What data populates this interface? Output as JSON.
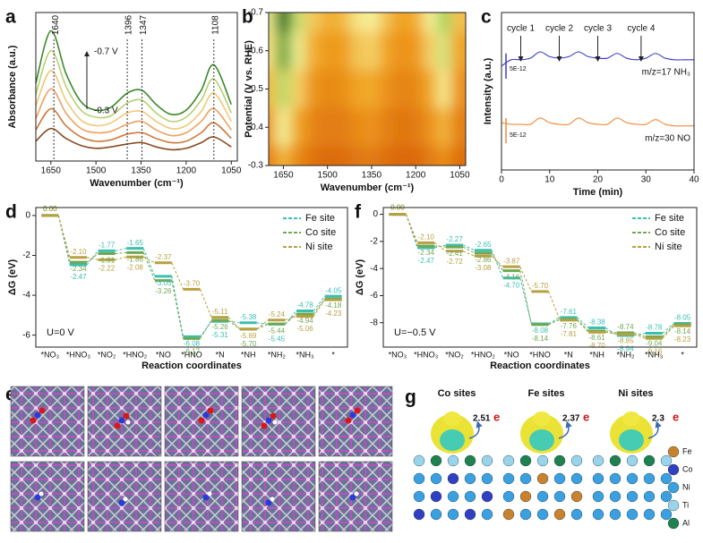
{
  "panel_labels": [
    "a",
    "b",
    "c",
    "d",
    "e",
    "f",
    "g"
  ],
  "chart_data": [
    {
      "type": "line",
      "xlabel": "Wavenumber (cm⁻¹)",
      "ylabel": "Absorbance (a.u.)",
      "x": [
        1700,
        1650,
        1600,
        1550,
        1500,
        1450,
        1396,
        1347,
        1300,
        1250,
        1200,
        1150,
        1108,
        1050
      ],
      "xlim": [
        1700,
        1030
      ],
      "xticks": [
        1650,
        1500,
        1350,
        1200,
        1050
      ],
      "ylim": [
        0,
        1.05
      ],
      "series": [
        {
          "color": "#8a4a1e",
          "values": [
            0.14,
            0.23,
            0.16,
            0.11,
            0.09,
            0.1,
            0.12,
            0.13,
            0.1,
            0.08,
            0.09,
            0.13,
            0.17,
            0.1
          ]
        },
        {
          "color": "#d0783a",
          "values": [
            0.22,
            0.37,
            0.25,
            0.17,
            0.14,
            0.15,
            0.19,
            0.2,
            0.16,
            0.13,
            0.14,
            0.2,
            0.27,
            0.16
          ]
        },
        {
          "color": "#f0a060",
          "values": [
            0.3,
            0.51,
            0.34,
            0.23,
            0.2,
            0.21,
            0.26,
            0.28,
            0.22,
            0.18,
            0.2,
            0.28,
            0.37,
            0.22
          ]
        },
        {
          "color": "#f0c878",
          "values": [
            0.39,
            0.64,
            0.43,
            0.29,
            0.25,
            0.27,
            0.34,
            0.35,
            0.28,
            0.23,
            0.25,
            0.35,
            0.48,
            0.28
          ]
        },
        {
          "color": "#b8d070",
          "values": [
            0.47,
            0.78,
            0.53,
            0.36,
            0.31,
            0.32,
            0.41,
            0.43,
            0.34,
            0.28,
            0.31,
            0.43,
            0.58,
            0.34
          ]
        },
        {
          "color": "#3a8a2a",
          "values": [
            0.55,
            0.92,
            0.62,
            0.42,
            0.36,
            0.38,
            0.48,
            0.5,
            0.4,
            0.33,
            0.36,
            0.5,
            0.68,
            0.4
          ]
        }
      ],
      "annotations": [
        {
          "text": "1640",
          "x": 1640
        },
        {
          "text": "1396",
          "x": 1396
        },
        {
          "text": "1347",
          "x": 1347
        },
        {
          "text": "1108",
          "x": 1108
        }
      ],
      "potential_labels": [
        "-0.7 V",
        "-0.3 V"
      ]
    },
    {
      "type": "heatmap",
      "xlabel": "Wavenumber (cm⁻¹)",
      "ylabel": "Potential (V vs. RHE)",
      "x": [
        1700,
        1650,
        1600,
        1550,
        1500,
        1450,
        1396,
        1347,
        1300,
        1250,
        1200,
        1150,
        1108,
        1050
      ],
      "y": [
        -0.7,
        -0.6,
        -0.5,
        -0.4,
        -0.3
      ],
      "values": [
        [
          0.55,
          0.92,
          0.62,
          0.42,
          0.36,
          0.38,
          0.48,
          0.5,
          0.4,
          0.33,
          0.36,
          0.5,
          0.68,
          0.4
        ],
        [
          0.47,
          0.78,
          0.53,
          0.36,
          0.31,
          0.32,
          0.41,
          0.43,
          0.34,
          0.28,
          0.31,
          0.43,
          0.58,
          0.34
        ],
        [
          0.39,
          0.64,
          0.43,
          0.29,
          0.25,
          0.27,
          0.34,
          0.35,
          0.28,
          0.23,
          0.25,
          0.35,
          0.48,
          0.28
        ],
        [
          0.3,
          0.51,
          0.34,
          0.23,
          0.2,
          0.21,
          0.26,
          0.28,
          0.22,
          0.18,
          0.2,
          0.28,
          0.37,
          0.22
        ],
        [
          0.22,
          0.37,
          0.25,
          0.17,
          0.14,
          0.15,
          0.19,
          0.2,
          0.16,
          0.13,
          0.14,
          0.2,
          0.27,
          0.16
        ]
      ],
      "xlim": [
        1700,
        1030
      ],
      "xticks": [
        1650,
        1500,
        1350,
        1200,
        1050
      ],
      "ylim": [
        -0.3,
        -0.7
      ],
      "yticks": [
        -0.7,
        -0.6,
        -0.5,
        -0.4,
        -0.3
      ]
    },
    {
      "type": "line",
      "xlabel": "Time (min)",
      "ylabel": "Intensity (a.u.)",
      "x": [
        0,
        2,
        4,
        6,
        8,
        10,
        12,
        14,
        16,
        18,
        20,
        22,
        24,
        26,
        28,
        30,
        32,
        34,
        36,
        38,
        40
      ],
      "xlim": [
        0,
        40
      ],
      "xticks": [
        0,
        10,
        20,
        30,
        40
      ],
      "ylim": [
        0,
        1
      ],
      "series": [
        {
          "name": "m/z=17 NH₃",
          "color": "#3a3ad0",
          "values": [
            0.66,
            0.7,
            0.7,
            0.71,
            0.75,
            0.72,
            0.71,
            0.72,
            0.75,
            0.72,
            0.71,
            0.71,
            0.74,
            0.71,
            0.7,
            0.71,
            0.74,
            0.71,
            0.7,
            0.7,
            0.7
          ]
        },
        {
          "name": "m/z=30 NO",
          "color": "#f08a3a",
          "values": [
            0.3,
            0.29,
            0.29,
            0.29,
            0.33,
            0.3,
            0.29,
            0.29,
            0.33,
            0.3,
            0.29,
            0.29,
            0.33,
            0.3,
            0.29,
            0.29,
            0.32,
            0.29,
            0.28,
            0.28,
            0.28
          ]
        }
      ],
      "annotations": [
        {
          "text": "cycle 1",
          "x": 4
        },
        {
          "text": "cycle 2",
          "x": 12
        },
        {
          "text": "cycle 3",
          "x": 20
        },
        {
          "text": "cycle 4",
          "x": 29
        }
      ],
      "scale_bar_labels": [
        "5E-12",
        "5E-12"
      ]
    },
    {
      "type": "step",
      "xlabel": "Reaction coordinates",
      "ylabel": "ΔG (eV)",
      "categories": [
        "*NO₃",
        "*HNO₃",
        "*NO₂",
        "*HNO₂",
        "*NO",
        "*HNO",
        "*N",
        "*NH",
        "*NH₂",
        "*NH₃",
        "*"
      ],
      "ylim": [
        -6.6,
        0.4
      ],
      "yticks": [
        0,
        -2,
        -4,
        -6
      ],
      "legend": "upper right",
      "annotation": "U=0 V",
      "series": [
        {
          "name": "Fe site",
          "color": "#3bbfb0",
          "values": [
            0,
            -2.47,
            -1.77,
            -1.65,
            -3.05,
            -6.08,
            -5.31,
            -5.38,
            -5.45,
            -4.78,
            -4.05
          ],
          "value_labels": [
            "0.00",
            "-2.47",
            "-1.77",
            "-1.65",
            "-3.05",
            "-6.08",
            "-5.31",
            "-5.38",
            "-5.45",
            "-4.78",
            "-4.05"
          ]
        },
        {
          "name": "Co site",
          "color": "#6fa850",
          "values": [
            0,
            -2.34,
            -1.91,
            -1.86,
            -3.26,
            -6.17,
            -5.26,
            -5.7,
            -5.44,
            -4.94,
            -4.18
          ],
          "value_labels": [
            "0.00",
            "-2.34",
            "-1.91",
            "-1.86",
            "-3.26",
            "-6.17",
            "-5.26",
            "-5.70",
            "-5.44",
            "-4.94",
            "-4.18"
          ]
        },
        {
          "name": "Ni site",
          "color": "#b8a040",
          "values": [
            0,
            -2.1,
            -2.22,
            -2.08,
            -2.37,
            -3.7,
            -5.11,
            -5.69,
            -5.24,
            -5.06,
            -4.23
          ],
          "value_labels": [
            "0.00",
            "-2.10",
            "-2.22",
            "-2.08",
            "-2.37",
            "-3.70",
            "-5.11",
            "-5.69",
            "-5.24",
            "-5.06",
            "-4.23"
          ]
        }
      ]
    },
    {
      "type": "step",
      "xlabel": "Reaction coordinates",
      "ylabel": "ΔG (eV)",
      "categories": [
        "*NO₃",
        "*HNO₃",
        "*NO₂",
        "*HNO₂",
        "*NO",
        "*HNO",
        "*N",
        "*NH",
        "*NH₂",
        "*NH₃",
        "*"
      ],
      "ylim": [
        -9.8,
        0.5
      ],
      "yticks": [
        0,
        -2,
        -4,
        -6,
        -8
      ],
      "legend": "upper right",
      "annotation": "U=−0.5 V",
      "series": [
        {
          "name": "Fe site",
          "color": "#3bbfb0",
          "values": [
            0,
            -2.47,
            -2.27,
            -2.65,
            -4.7,
            -8.08,
            -7.61,
            -8.38,
            -8.94,
            -8.78,
            -8.05
          ],
          "value_labels": [
            "0.00",
            "-2.47",
            "-2.27",
            "-2.65",
            "-4.70",
            "-8.08",
            "-7.61",
            "-8.38",
            "-8.94",
            "-8.78",
            "-8.05"
          ]
        },
        {
          "name": "Co site",
          "color": "#6fa850",
          "values": [
            0,
            -2.34,
            -2.41,
            -2.86,
            -4.16,
            -8.14,
            -7.76,
            -8.61,
            -8.74,
            -9.04,
            -8.14
          ],
          "value_labels": [
            "0.00",
            "-2.34",
            "-2.41",
            "-2.86",
            "-4.16",
            "-8.14",
            "-7.76",
            "-8.61",
            "-8.74",
            "-9.04",
            "-8.14"
          ]
        },
        {
          "name": "Ni site",
          "color": "#b8a040",
          "values": [
            0,
            -2.1,
            -2.72,
            -3.08,
            -3.87,
            -5.7,
            -7.81,
            -8.7,
            -8.85,
            -9.16,
            -8.23
          ],
          "value_labels": [
            "0.00",
            "-2.10",
            "-2.72",
            "-3.08",
            "-3.87",
            "-5.70",
            "-7.81",
            "-8.70",
            "-8.85",
            "-9.16",
            "-8.23"
          ]
        }
      ]
    }
  ],
  "panel_g": {
    "titles": [
      "Co sites",
      "Fe sites",
      "Ni sites"
    ],
    "charge_transfer": [
      2.51,
      2.37,
      2.3
    ],
    "charge_unit": "e",
    "legend": [
      {
        "name": "Fe",
        "color": "#c8822e"
      },
      {
        "name": "Co",
        "color": "#3040c0"
      },
      {
        "name": "Ni",
        "color": "#3aa0e0"
      },
      {
        "name": "Ti",
        "color": "#9ad4ea"
      },
      {
        "name": "Al",
        "color": "#1f8050"
      }
    ]
  }
}
